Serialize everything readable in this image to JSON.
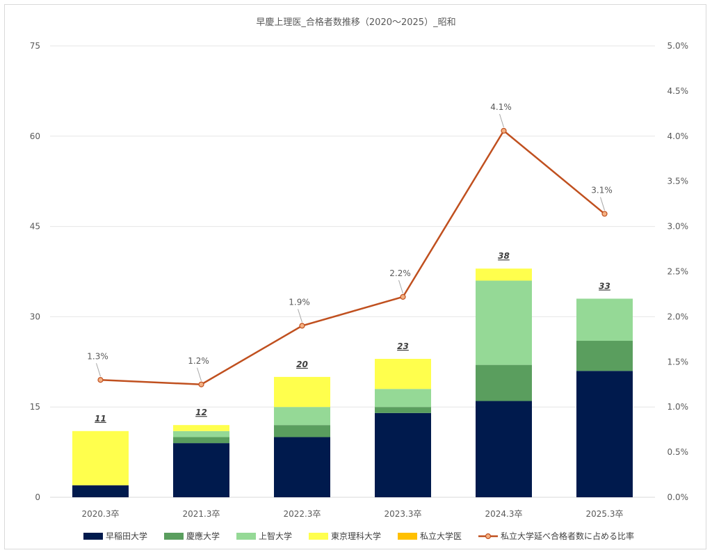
{
  "chart_data": {
    "type": "bar",
    "stacked": true,
    "title": "早慶上理医_合格者数推移（2020～2025）_昭和",
    "categories": [
      "2020.3卒",
      "2021.3卒",
      "2022.3卒",
      "2023.3卒",
      "2024.3卒",
      "2025.3卒"
    ],
    "series": [
      {
        "name": "早稲田大学",
        "color": "#001a4d",
        "values": [
          2,
          9,
          10,
          14,
          16,
          21
        ]
      },
      {
        "name": "慶應大学",
        "color": "#5a9e5e",
        "values": [
          0,
          1,
          2,
          1,
          6,
          5
        ]
      },
      {
        "name": "上智大学",
        "color": "#95d996",
        "values": [
          0,
          1,
          3,
          3,
          14,
          7
        ]
      },
      {
        "name": "東京理科大学",
        "color": "#ffff4d",
        "values": [
          9,
          1,
          5,
          5,
          2,
          0
        ]
      },
      {
        "name": "私立大学医",
        "color": "#ffc000",
        "values": [
          0,
          0,
          0,
          0,
          0,
          0
        ]
      }
    ],
    "totals": [
      11,
      12,
      20,
      23,
      38,
      33
    ],
    "line_series": {
      "name": "私立大学延べ合格者数に占める比率",
      "color": "#c0501f",
      "values": [
        1.3,
        1.25,
        1.9,
        2.22,
        4.06,
        3.14
      ],
      "labels": [
        "1.3%",
        "1.2%",
        "1.9%",
        "2.2%",
        "4.1%",
        "3.1%"
      ]
    },
    "y_left": {
      "min": 0,
      "max": 75,
      "ticks": [
        "0",
        "15",
        "30",
        "45",
        "60",
        "75"
      ]
    },
    "y_right": {
      "min": 0,
      "max": 5,
      "ticks": [
        "0.0%",
        "0.5%",
        "1.0%",
        "1.5%",
        "2.0%",
        "2.5%",
        "3.0%",
        "3.5%",
        "4.0%",
        "4.5%",
        "5.0%"
      ]
    },
    "grid": true,
    "legend_position": "bottom"
  }
}
